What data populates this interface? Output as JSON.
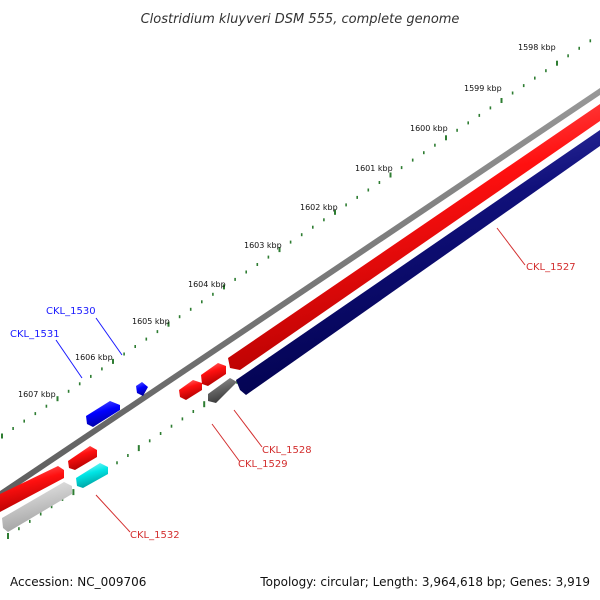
{
  "title": "Clostridium kluyveri DSM 555, complete genome",
  "footer": {
    "accession": "Accession: NC_009706",
    "summary": "Topology: circular; Length: 3,964,618 bp; Genes: 3,919"
  },
  "ruler": {
    "unit_label": "kbp",
    "tick_labels": [
      "1598 kbp",
      "1599 kbp",
      "1600 kbp",
      "1601 kbp",
      "1602 kbp",
      "1603 kbp",
      "1604 kbp",
      "1605 kbp",
      "1606 kbp",
      "1607 kbp"
    ],
    "tick_color": "#2e7d32"
  },
  "genes": [
    {
      "id": "CKL_1527",
      "label": "CKL_1527",
      "color": "#d32f2f"
    },
    {
      "id": "CKL_1528",
      "label": "CKL_1528",
      "color": "#d32f2f"
    },
    {
      "id": "CKL_1529",
      "label": "CKL_1529",
      "color": "#d32f2f"
    },
    {
      "id": "CKL_1530",
      "label": "CKL_1530",
      "color": "#1a1aff"
    },
    {
      "id": "CKL_1531",
      "label": "CKL_1531",
      "color": "#1a1aff"
    },
    {
      "id": "CKL_1532",
      "label": "CKL_1532",
      "color": "#d32f2f"
    }
  ],
  "colors": {
    "backbone": "#808080",
    "forward_cds": "#ff0000",
    "reverse_cds": "#00007f",
    "blue_feature": "#0000ff",
    "cyan_feature": "#00e5e5",
    "gray_feature": "#666666",
    "light_gray_feature": "#c8c8c8"
  }
}
